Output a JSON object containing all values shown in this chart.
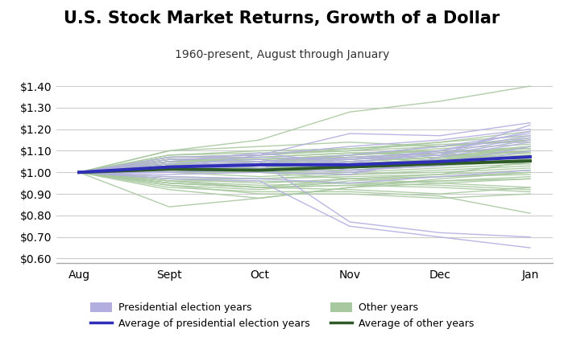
{
  "title": "U.S. Stock Market Returns, Growth of a Dollar",
  "subtitle": "1960-present, August through January",
  "months": [
    "Aug",
    "Sept",
    "Oct",
    "Nov",
    "Dec",
    "Jan"
  ],
  "month_positions": [
    0,
    1,
    2,
    3,
    4,
    5
  ],
  "ylim": [
    0.58,
    1.44
  ],
  "yticks": [
    0.6,
    0.7,
    0.8,
    0.9,
    1.0,
    1.1,
    1.2,
    1.3,
    1.4
  ],
  "ytick_labels": [
    "$0.60",
    "$0.70",
    "$0.80",
    "$0.90",
    "$1.00",
    "$1.10",
    "$1.20",
    "$1.30",
    "$1.40"
  ],
  "election_years_color": "#b3aee0",
  "other_years_color": "#a8c8a0",
  "avg_election_color": "#2e2eb8",
  "avg_other_color": "#2d5a27",
  "election_years_data": [
    [
      1.0,
      1.07,
      1.08,
      1.18,
      1.17,
      1.23
    ],
    [
      1.0,
      1.04,
      1.06,
      1.01,
      1.03,
      1.1
    ],
    [
      1.0,
      1.01,
      1.03,
      1.05,
      1.08,
      1.15
    ],
    [
      1.0,
      1.05,
      1.09,
      1.04,
      1.1,
      1.19
    ],
    [
      1.0,
      0.97,
      0.96,
      0.75,
      0.7,
      0.65
    ],
    [
      1.0,
      1.02,
      1.08,
      1.12,
      1.15,
      1.2
    ],
    [
      1.0,
      1.03,
      1.05,
      0.77,
      0.72,
      0.7
    ],
    [
      1.0,
      1.06,
      1.07,
      1.06,
      1.08,
      1.22
    ],
    [
      1.0,
      1.0,
      1.01,
      1.02,
      1.04,
      1.12
    ],
    [
      1.0,
      0.99,
      1.0,
      0.99,
      1.07,
      1.14
    ],
    [
      1.0,
      1.02,
      1.04,
      1.07,
      1.09,
      1.16
    ],
    [
      1.0,
      1.01,
      1.03,
      1.06,
      1.1,
      1.17
    ],
    [
      1.0,
      1.0,
      1.02,
      1.0,
      1.05,
      1.07
    ],
    [
      1.0,
      0.98,
      0.97,
      0.95,
      0.98,
      1.01
    ],
    [
      1.0,
      1.02,
      1.05,
      1.08,
      1.12,
      1.18
    ]
  ],
  "other_years_data": [
    [
      1.0,
      1.1,
      1.15,
      1.28,
      1.33,
      1.4
    ],
    [
      1.0,
      1.04,
      1.0,
      0.97,
      0.99,
      1.05
    ],
    [
      1.0,
      0.95,
      0.93,
      0.92,
      0.9,
      0.93
    ],
    [
      1.0,
      1.02,
      1.05,
      1.08,
      1.11,
      1.13
    ],
    [
      1.0,
      1.03,
      1.04,
      1.06,
      1.09,
      1.12
    ],
    [
      1.0,
      0.97,
      0.95,
      0.97,
      0.95,
      0.93
    ],
    [
      1.0,
      1.05,
      1.02,
      1.05,
      1.07,
      1.1
    ],
    [
      1.0,
      0.94,
      0.92,
      0.96,
      0.98,
      1.0
    ],
    [
      1.0,
      1.08,
      1.09,
      1.1,
      1.12,
      1.15
    ],
    [
      1.0,
      1.01,
      1.03,
      1.05,
      1.07,
      1.06
    ],
    [
      1.0,
      0.84,
      0.88,
      0.93,
      0.97,
      1.0
    ],
    [
      1.0,
      1.0,
      0.98,
      1.0,
      1.02,
      1.04
    ],
    [
      1.0,
      1.04,
      1.04,
      1.08,
      1.12,
      1.16
    ],
    [
      1.0,
      1.07,
      1.08,
      1.1,
      1.14,
      1.19
    ],
    [
      1.0,
      0.94,
      0.9,
      0.9,
      0.88,
      0.9
    ],
    [
      1.0,
      1.05,
      1.05,
      1.07,
      1.09,
      1.11
    ],
    [
      1.0,
      1.03,
      1.02,
      1.04,
      1.06,
      1.08
    ],
    [
      1.0,
      0.96,
      0.96,
      0.95,
      0.96,
      0.98
    ],
    [
      1.0,
      1.06,
      1.06,
      1.08,
      1.1,
      1.09
    ],
    [
      1.0,
      1.0,
      1.0,
      0.99,
      1.0,
      1.02
    ],
    [
      1.0,
      1.08,
      1.1,
      1.11,
      1.13,
      1.14
    ],
    [
      1.0,
      1.02,
      1.01,
      1.03,
      1.05,
      1.07
    ],
    [
      1.0,
      1.05,
      1.07,
      1.09,
      1.08,
      1.06
    ],
    [
      1.0,
      0.96,
      0.93,
      0.94,
      0.93,
      0.91
    ],
    [
      1.0,
      1.03,
      1.03,
      1.04,
      1.06,
      1.1
    ],
    [
      1.0,
      0.97,
      0.97,
      0.99,
      1.01,
      1.03
    ],
    [
      1.0,
      1.04,
      1.04,
      1.05,
      1.07,
      1.12
    ],
    [
      1.0,
      1.06,
      1.05,
      1.07,
      1.09,
      1.06
    ],
    [
      1.0,
      0.95,
      0.93,
      0.97,
      0.98,
      0.99
    ],
    [
      1.0,
      1.03,
      1.02,
      1.03,
      1.05,
      1.08
    ],
    [
      1.0,
      1.07,
      1.08,
      1.11,
      1.14,
      1.17
    ],
    [
      1.0,
      0.93,
      0.91,
      0.91,
      0.89,
      0.81
    ],
    [
      1.0,
      1.05,
      1.06,
      1.08,
      1.1,
      1.11
    ],
    [
      1.0,
      0.98,
      0.97,
      0.98,
      0.99,
      1.01
    ],
    [
      1.0,
      0.92,
      0.88,
      0.93,
      0.95,
      0.97
    ],
    [
      1.0,
      1.1,
      1.12,
      1.14,
      1.12,
      1.15
    ],
    [
      1.0,
      1.04,
      1.03,
      1.05,
      1.07,
      1.1
    ],
    [
      1.0,
      1.01,
      1.0,
      1.01,
      1.04,
      1.06
    ],
    [
      1.0,
      1.06,
      1.06,
      1.07,
      1.05,
      1.04
    ],
    [
      1.0,
      0.95,
      0.93,
      0.94,
      0.96,
      0.97
    ],
    [
      1.0,
      1.04,
      1.03,
      1.04,
      1.06,
      1.09
    ],
    [
      1.0,
      1.03,
      1.0,
      1.01,
      1.03,
      1.05
    ],
    [
      1.0,
      1.07,
      1.07,
      1.09,
      1.1,
      1.09
    ],
    [
      1.0,
      0.96,
      0.94,
      0.95,
      0.94,
      0.92
    ],
    [
      1.0,
      1.05,
      1.05,
      1.06,
      1.08,
      1.1
    ]
  ],
  "avg_election_data": [
    1.0,
    1.025,
    1.035,
    1.035,
    1.05,
    1.072
  ],
  "avg_other_data": [
    1.0,
    1.015,
    1.01,
    1.025,
    1.04,
    1.053
  ],
  "linewidth_thin": 1.0,
  "linewidth_avg": 2.8,
  "alpha_thin": 0.9,
  "figsize": [
    7.0,
    4.19
  ],
  "dpi": 100,
  "title_fontsize": 15,
  "subtitle_fontsize": 10,
  "tick_fontsize": 10,
  "legend_fontsize": 9,
  "background_color": "#ffffff",
  "spine_color": "#aaaaaa",
  "grid_color": "#cccccc"
}
